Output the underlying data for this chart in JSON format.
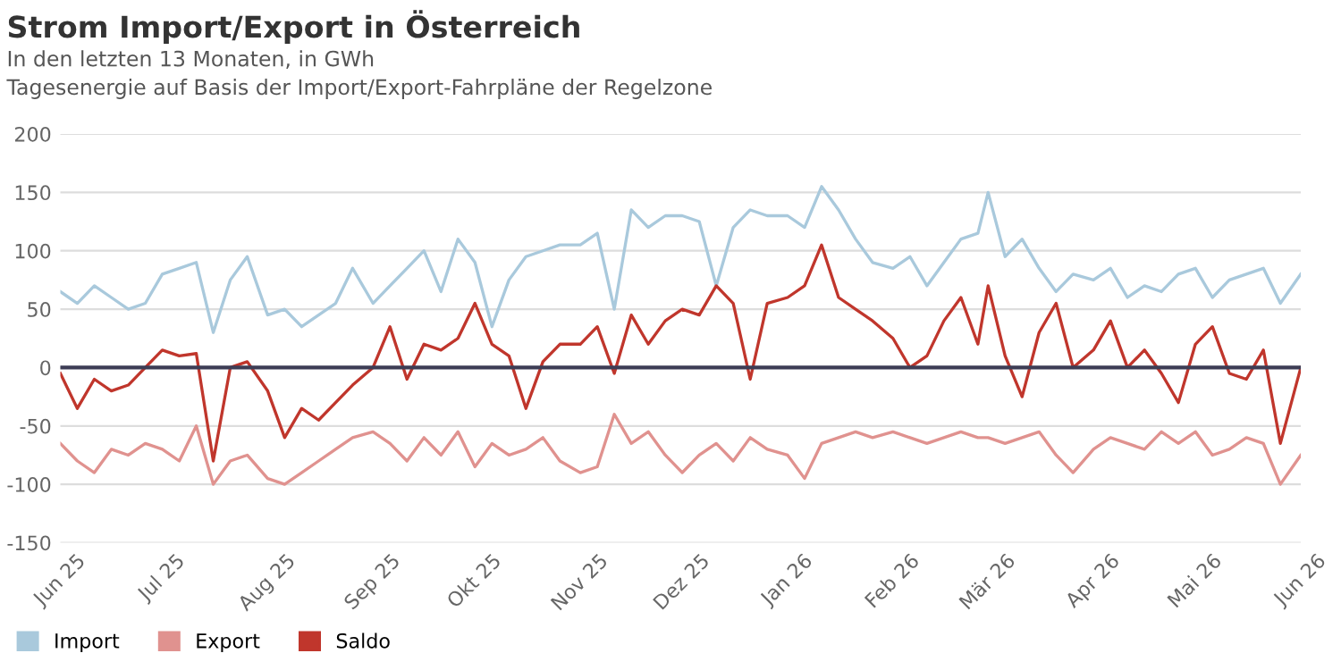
{
  "chart_data": {
    "type": "line",
    "title": "Strom Import/Export in Österreich",
    "subtitle": "In den letzten 13 Monaten, in GWh\nTagesenergie auf Basis der Import/Export-Fahrpläne der Regelzone",
    "x": [
      "2025-06-01",
      "2025-06-06",
      "2025-06-11",
      "2025-06-16",
      "2025-06-21",
      "2025-06-26",
      "2025-07-01",
      "2025-07-06",
      "2025-07-11",
      "2025-07-16",
      "2025-07-21",
      "2025-07-26",
      "2025-08-01",
      "2025-08-06",
      "2025-08-11",
      "2025-08-16",
      "2025-08-21",
      "2025-08-26",
      "2025-09-01",
      "2025-09-06",
      "2025-09-11",
      "2025-09-16",
      "2025-09-21",
      "2025-09-26",
      "2025-10-01",
      "2025-10-06",
      "2025-10-11",
      "2025-10-16",
      "2025-10-21",
      "2025-10-26",
      "2025-11-01",
      "2025-11-06",
      "2025-11-11",
      "2025-11-16",
      "2025-11-21",
      "2025-11-26",
      "2025-12-01",
      "2025-12-06",
      "2025-12-11",
      "2025-12-16",
      "2025-12-21",
      "2025-12-26",
      "2026-01-01",
      "2026-01-06",
      "2026-01-11",
      "2026-01-16",
      "2026-01-21",
      "2026-01-26",
      "2026-02-01",
      "2026-02-06",
      "2026-02-11",
      "2026-02-16",
      "2026-02-21",
      "2026-02-26",
      "2026-03-01",
      "2026-03-06",
      "2026-03-11",
      "2026-03-16",
      "2026-03-21",
      "2026-03-26",
      "2026-04-01",
      "2026-04-06",
      "2026-04-11",
      "2026-04-16",
      "2026-04-21",
      "2026-04-26",
      "2026-05-01",
      "2026-05-06",
      "2026-05-11",
      "2026-05-16",
      "2026-05-21",
      "2026-05-26",
      "2026-06-01"
    ],
    "series": [
      {
        "name": "Import",
        "color": "#a9c9dc",
        "values": [
          65,
          55,
          70,
          60,
          50,
          55,
          80,
          85,
          90,
          30,
          75,
          95,
          45,
          50,
          35,
          45,
          55,
          85,
          55,
          70,
          85,
          100,
          65,
          110,
          90,
          35,
          75,
          95,
          100,
          105,
          105,
          115,
          50,
          135,
          120,
          130,
          130,
          125,
          70,
          120,
          135,
          130,
          130,
          120,
          155,
          135,
          110,
          90,
          85,
          95,
          70,
          90,
          110,
          115,
          150,
          95,
          110,
          85,
          65,
          80,
          75,
          85,
          60,
          70,
          65,
          80,
          85,
          60,
          75,
          80,
          85,
          55,
          80
        ]
      },
      {
        "name": "Export",
        "color": "#e0928f",
        "values": [
          -65,
          -80,
          -90,
          -70,
          -75,
          -65,
          -70,
          -80,
          -50,
          -100,
          -80,
          -75,
          -95,
          -100,
          -90,
          -80,
          -70,
          -60,
          -55,
          -65,
          -80,
          -60,
          -75,
          -55,
          -85,
          -65,
          -75,
          -70,
          -60,
          -80,
          -90,
          -85,
          -40,
          -65,
          -55,
          -75,
          -90,
          -75,
          -65,
          -80,
          -60,
          -70,
          -75,
          -95,
          -65,
          -60,
          -55,
          -60,
          -55,
          -60,
          -65,
          -60,
          -55,
          -60,
          -60,
          -65,
          -60,
          -55,
          -75,
          -90,
          -70,
          -60,
          -65,
          -70,
          -55,
          -65,
          -55,
          -75,
          -70,
          -60,
          -65,
          -100,
          -75
        ]
      },
      {
        "name": "Saldo",
        "color": "#c0362c",
        "values": [
          -5,
          -35,
          -10,
          -20,
          -15,
          0,
          15,
          10,
          12,
          -80,
          0,
          5,
          -20,
          -60,
          -35,
          -45,
          -30,
          -15,
          0,
          35,
          -10,
          20,
          15,
          25,
          55,
          20,
          10,
          -35,
          5,
          20,
          20,
          35,
          -5,
          45,
          20,
          40,
          50,
          45,
          70,
          55,
          -10,
          55,
          60,
          70,
          105,
          60,
          50,
          40,
          25,
          0,
          10,
          40,
          60,
          20,
          70,
          10,
          -25,
          30,
          55,
          0,
          15,
          40,
          0,
          15,
          -5,
          -30,
          20,
          35,
          -5,
          -10,
          15,
          -65,
          0
        ]
      }
    ],
    "xticks": [
      {
        "value": "2025-06-01",
        "label": "Jun 25"
      },
      {
        "value": "2025-07-01",
        "label": "Jul 25"
      },
      {
        "value": "2025-08-01",
        "label": "Aug 25"
      },
      {
        "value": "2025-09-01",
        "label": "Sep 25"
      },
      {
        "value": "2025-10-01",
        "label": "Okt 25"
      },
      {
        "value": "2025-11-01",
        "label": "Nov 25"
      },
      {
        "value": "2025-12-01",
        "label": "Dez 25"
      },
      {
        "value": "2026-01-01",
        "label": "Jan 26"
      },
      {
        "value": "2026-02-01",
        "label": "Feb 26"
      },
      {
        "value": "2026-03-01",
        "label": "Mär 26"
      },
      {
        "value": "2026-04-01",
        "label": "Apr 26"
      },
      {
        "value": "2026-05-01",
        "label": "Mai 26"
      },
      {
        "value": "2026-06-01",
        "label": "Jun 26"
      }
    ],
    "xlim": [
      "2025-06-01",
      "2026-06-01"
    ],
    "ylim": [
      -150,
      200
    ],
    "yticks": [
      -150,
      -100,
      -50,
      0,
      50,
      100,
      150,
      200
    ],
    "ref_lines": [
      {
        "axis": "y",
        "value": 0,
        "color": "#3d3d55"
      }
    ],
    "grid": "y",
    "legend": "bottom left",
    "marker": "none",
    "line_style": "solid"
  }
}
